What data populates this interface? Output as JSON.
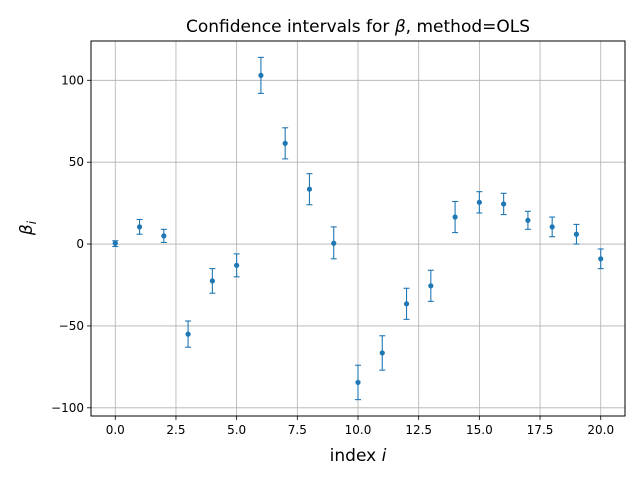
{
  "chart_data": {
    "type": "scatter",
    "title_prefix": "Confidence intervals for ",
    "title_symbol": "β",
    "title_suffix": ", method=OLS",
    "xlabel_text": "index ",
    "xlabel_symbol": "i",
    "ylabel_symbol": "β",
    "ylabel_sub": "i",
    "xlim": [
      -1,
      21
    ],
    "ylim": [
      -105,
      124
    ],
    "xticks": [
      0,
      2.5,
      5,
      7.5,
      10,
      12.5,
      15,
      17.5,
      20
    ],
    "xtick_labels": [
      "0.0",
      "2.5",
      "5.0",
      "7.5",
      "10.0",
      "12.5",
      "15.0",
      "17.5",
      "20.0"
    ],
    "yticks": [
      -100,
      -50,
      0,
      50,
      100
    ],
    "ytick_labels": [
      "−100",
      "−50",
      "0",
      "50",
      "100"
    ],
    "grid": true,
    "color": "#1f77b4",
    "points": [
      {
        "x": 0,
        "y": 0.5,
        "lo": -1.5,
        "hi": 2
      },
      {
        "x": 1,
        "y": 10.5,
        "lo": 6,
        "hi": 15
      },
      {
        "x": 2,
        "y": 5,
        "lo": 1,
        "hi": 9
      },
      {
        "x": 3,
        "y": -55,
        "lo": -63,
        "hi": -47
      },
      {
        "x": 4,
        "y": -22.5,
        "lo": -30,
        "hi": -15
      },
      {
        "x": 5,
        "y": -13,
        "lo": -20,
        "hi": -6
      },
      {
        "x": 6,
        "y": 103,
        "lo": 92,
        "hi": 114
      },
      {
        "x": 7,
        "y": 61.5,
        "lo": 52,
        "hi": 71
      },
      {
        "x": 8,
        "y": 33.5,
        "lo": 24,
        "hi": 43
      },
      {
        "x": 9,
        "y": 0.5,
        "lo": -9,
        "hi": 10.5
      },
      {
        "x": 10,
        "y": -84.5,
        "lo": -95,
        "hi": -74
      },
      {
        "x": 11,
        "y": -66.5,
        "lo": -77,
        "hi": -56
      },
      {
        "x": 12,
        "y": -36.5,
        "lo": -46,
        "hi": -27
      },
      {
        "x": 13,
        "y": -25.5,
        "lo": -35,
        "hi": -16
      },
      {
        "x": 14,
        "y": 16.5,
        "lo": 7,
        "hi": 26
      },
      {
        "x": 15,
        "y": 25.5,
        "lo": 19,
        "hi": 32
      },
      {
        "x": 16,
        "y": 24.5,
        "lo": 18,
        "hi": 31
      },
      {
        "x": 17,
        "y": 14.5,
        "lo": 9,
        "hi": 20
      },
      {
        "x": 18,
        "y": 10.5,
        "lo": 4.5,
        "hi": 16.5
      },
      {
        "x": 19,
        "y": 6,
        "lo": 0,
        "hi": 12
      },
      {
        "x": 20,
        "y": -9,
        "lo": -15,
        "hi": -3
      }
    ]
  }
}
